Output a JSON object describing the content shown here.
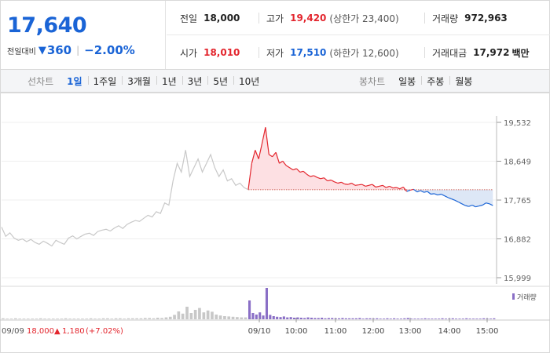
{
  "quote": {
    "price": "17,640",
    "change_label": "전일대비",
    "change_arrow": "▼",
    "change_value": "360",
    "change_pct": "−2.00%"
  },
  "info": {
    "prev_close": {
      "label": "전일",
      "value": "18,000"
    },
    "high": {
      "label": "고가",
      "value": "19,420",
      "sub": "(상한가 23,400)"
    },
    "volume": {
      "label": "거래량",
      "value": "972,963"
    },
    "open": {
      "label": "시가",
      "value": "18,010"
    },
    "low": {
      "label": "저가",
      "value": "17,510",
      "sub": "(하한가 12,600)"
    },
    "amount": {
      "label": "거래대금",
      "value": "17,972",
      "unit": "백만"
    }
  },
  "tabs": {
    "line_label": "선차트",
    "line_items": [
      "1일",
      "1주일",
      "3개월",
      "1년",
      "3년",
      "5년",
      "10년"
    ],
    "candle_label": "봉차트",
    "candle_items": [
      "일봉",
      "주봉",
      "월봉"
    ]
  },
  "colors": {
    "up": "#e3262e",
    "down": "#1a64d6",
    "prev_day": "#c8c8c8",
    "volume": "#8a6fc6",
    "fill_up": "#fde0e3",
    "fill_down": "#dde7f6"
  },
  "chart_data": {
    "type": "line",
    "ylim": [
      15999,
      19532
    ],
    "y_ticks": [
      "19,532",
      "18,649",
      "17,765",
      "16,882",
      "15,999"
    ],
    "y_tick_values": [
      19532,
      18649,
      17765,
      16882,
      15999
    ],
    "baseline": 18000,
    "x_labels": [
      "09/10",
      "10:00",
      "11:00",
      "12:00",
      "13:00",
      "14:00",
      "15:00"
    ],
    "prev_day_label": "09/09",
    "prev_day_close": "18,000",
    "prev_day_change_arrow": "▲",
    "prev_day_change": "1,180",
    "prev_day_change_pct": "(+7.02%)",
    "volume_legend": "거래량",
    "prev_day_series": [
      17150,
      16940,
      17020,
      16900,
      16850,
      16880,
      16820,
      16870,
      16800,
      16760,
      16830,
      16780,
      16720,
      16850,
      16800,
      16760,
      16900,
      16950,
      16880,
      16940,
      16990,
      17010,
      16960,
      17050,
      17080,
      17100,
      17060,
      17130,
      17180,
      17120,
      17210,
      17260,
      17300,
      17280,
      17350,
      17420,
      17380,
      17500,
      17460,
      17700,
      17650,
      18200,
      18600,
      18400,
      18900,
      18300,
      18500,
      18700,
      18400,
      18600,
      18800,
      18500,
      18300,
      18450,
      18200,
      18250,
      18100,
      18150,
      18050,
      18000
    ],
    "today_series": [
      18010,
      18600,
      18900,
      18700,
      19050,
      19420,
      18800,
      18750,
      18850,
      18600,
      18650,
      18550,
      18500,
      18450,
      18480,
      18400,
      18420,
      18350,
      18300,
      18320,
      18280,
      18250,
      18270,
      18200,
      18220,
      18180,
      18150,
      18170,
      18130,
      18120,
      18150,
      18100,
      18110,
      18120,
      18080,
      18100,
      18120,
      18060,
      18080,
      18100,
      18050,
      18080,
      18040,
      18050,
      18020,
      18060,
      17960,
      17990,
      18010,
      17950,
      17980,
      17940,
      17960,
      17900,
      17910,
      17880,
      17900,
      17860,
      17820,
      17790,
      17760,
      17720,
      17680,
      17640,
      17620,
      17650,
      17610,
      17630,
      17650,
      17700,
      17680,
      17640
    ],
    "today_volume": [
      60,
      20,
      15,
      22,
      12,
      100,
      14,
      10,
      8,
      7,
      9,
      6,
      7,
      5,
      6,
      5,
      4,
      6,
      5,
      4,
      4,
      5,
      3,
      4,
      4,
      3,
      3,
      4,
      3,
      3,
      3,
      3,
      4,
      2,
      3,
      3,
      2,
      3,
      2,
      2,
      3,
      2,
      3,
      2,
      2,
      3,
      4,
      2,
      2,
      2,
      2,
      3,
      2,
      2,
      2,
      2,
      3,
      2,
      2,
      3,
      2,
      2,
      2,
      3,
      2,
      2,
      2,
      2,
      3,
      2,
      2,
      3
    ],
    "prev_day_volume": [
      3,
      2,
      2,
      3,
      2,
      2,
      2,
      2,
      2,
      3,
      2,
      2,
      2,
      2,
      2,
      3,
      2,
      2,
      2,
      2,
      2,
      3,
      2,
      2,
      3,
      3,
      2,
      3,
      3,
      2,
      3,
      3,
      3,
      3,
      4,
      4,
      3,
      5,
      4,
      6,
      8,
      14,
      25,
      18,
      40,
      20,
      30,
      36,
      22,
      28,
      24,
      15,
      12,
      10,
      9,
      8,
      7,
      6,
      6,
      5
    ]
  }
}
